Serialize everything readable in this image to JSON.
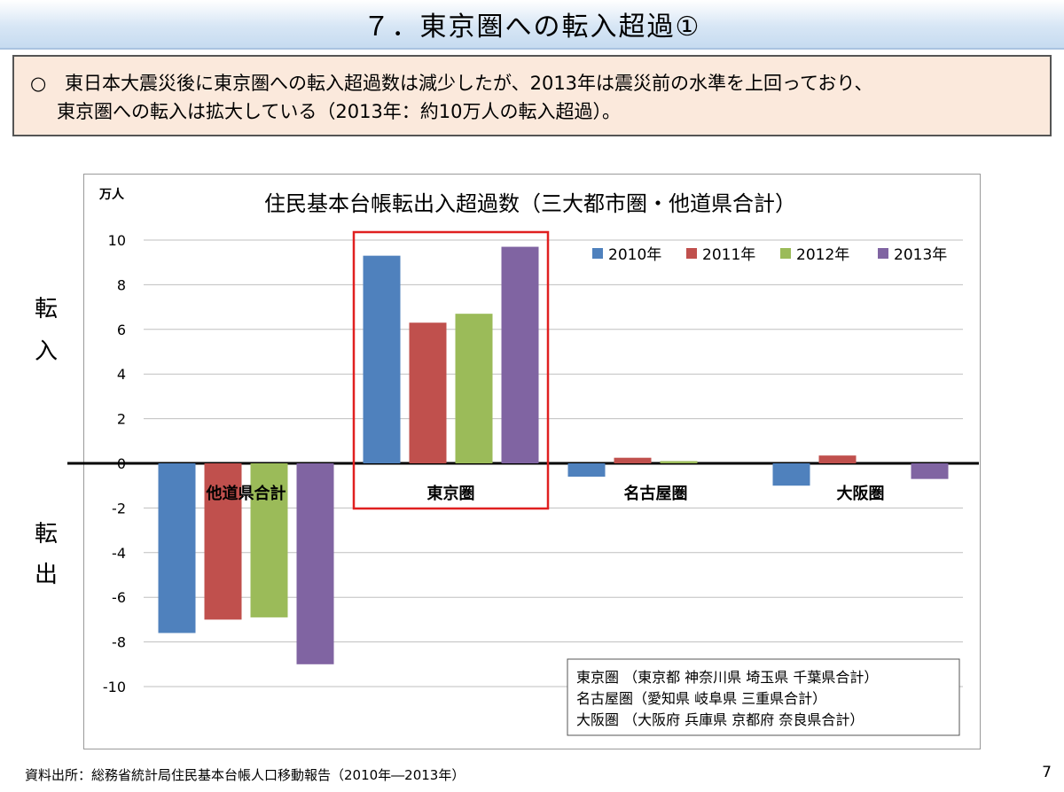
{
  "header": {
    "title": "７．東京圏への転入超過①"
  },
  "summary": {
    "bullet": "○",
    "line1": "東日本大震災後に東京圏への転入超過数は減少したが、2013年は震災前の水準を上回っており、",
    "line2": "東京圏への転入は拡大している（2013年：約10万人の転入超過）。"
  },
  "side_labels": {
    "in_top": "転",
    "in_bottom": "入",
    "out_top": "転",
    "out_bottom": "出"
  },
  "chart_data": {
    "type": "bar",
    "title": "住民基本台帳転出入超過数（三大都市圏・他道県合計）",
    "ylabel": "万人",
    "ylim": [
      -10,
      10
    ],
    "yticks": [
      10,
      8,
      6,
      4,
      2,
      0,
      -2,
      -4,
      -6,
      -8,
      -10
    ],
    "grid": true,
    "legend_position": "top-right",
    "categories": [
      "他道県合計",
      "東京圏",
      "名古屋圏",
      "大阪圏"
    ],
    "series": [
      {
        "name": "2010年",
        "color": "#4f81bd",
        "values": [
          -7.6,
          9.3,
          -0.6,
          -1.0
        ]
      },
      {
        "name": "2011年",
        "color": "#c0504d",
        "values": [
          -7.0,
          6.3,
          0.25,
          0.35
        ]
      },
      {
        "name": "2012年",
        "color": "#9bbb59",
        "values": [
          -6.9,
          6.7,
          0.1,
          0.0
        ]
      },
      {
        "name": "2013年",
        "color": "#8064a2",
        "values": [
          -9.0,
          9.7,
          0.0,
          -0.7
        ]
      }
    ],
    "highlight_category": "東京圏",
    "highlight_color": "#e02020",
    "notes": [
      "東京圏 （東京都 神奈川県 埼玉県 千葉県合計）",
      "名古屋圏（愛知県 岐阜県 三重県合計）",
      "大阪圏 （大阪府 兵庫県 京都府 奈良県合計）"
    ]
  },
  "footer": {
    "source": "資料出所：総務省統計局住民基本台帳人口移動報告（2010年―2013年）",
    "page": "7"
  }
}
